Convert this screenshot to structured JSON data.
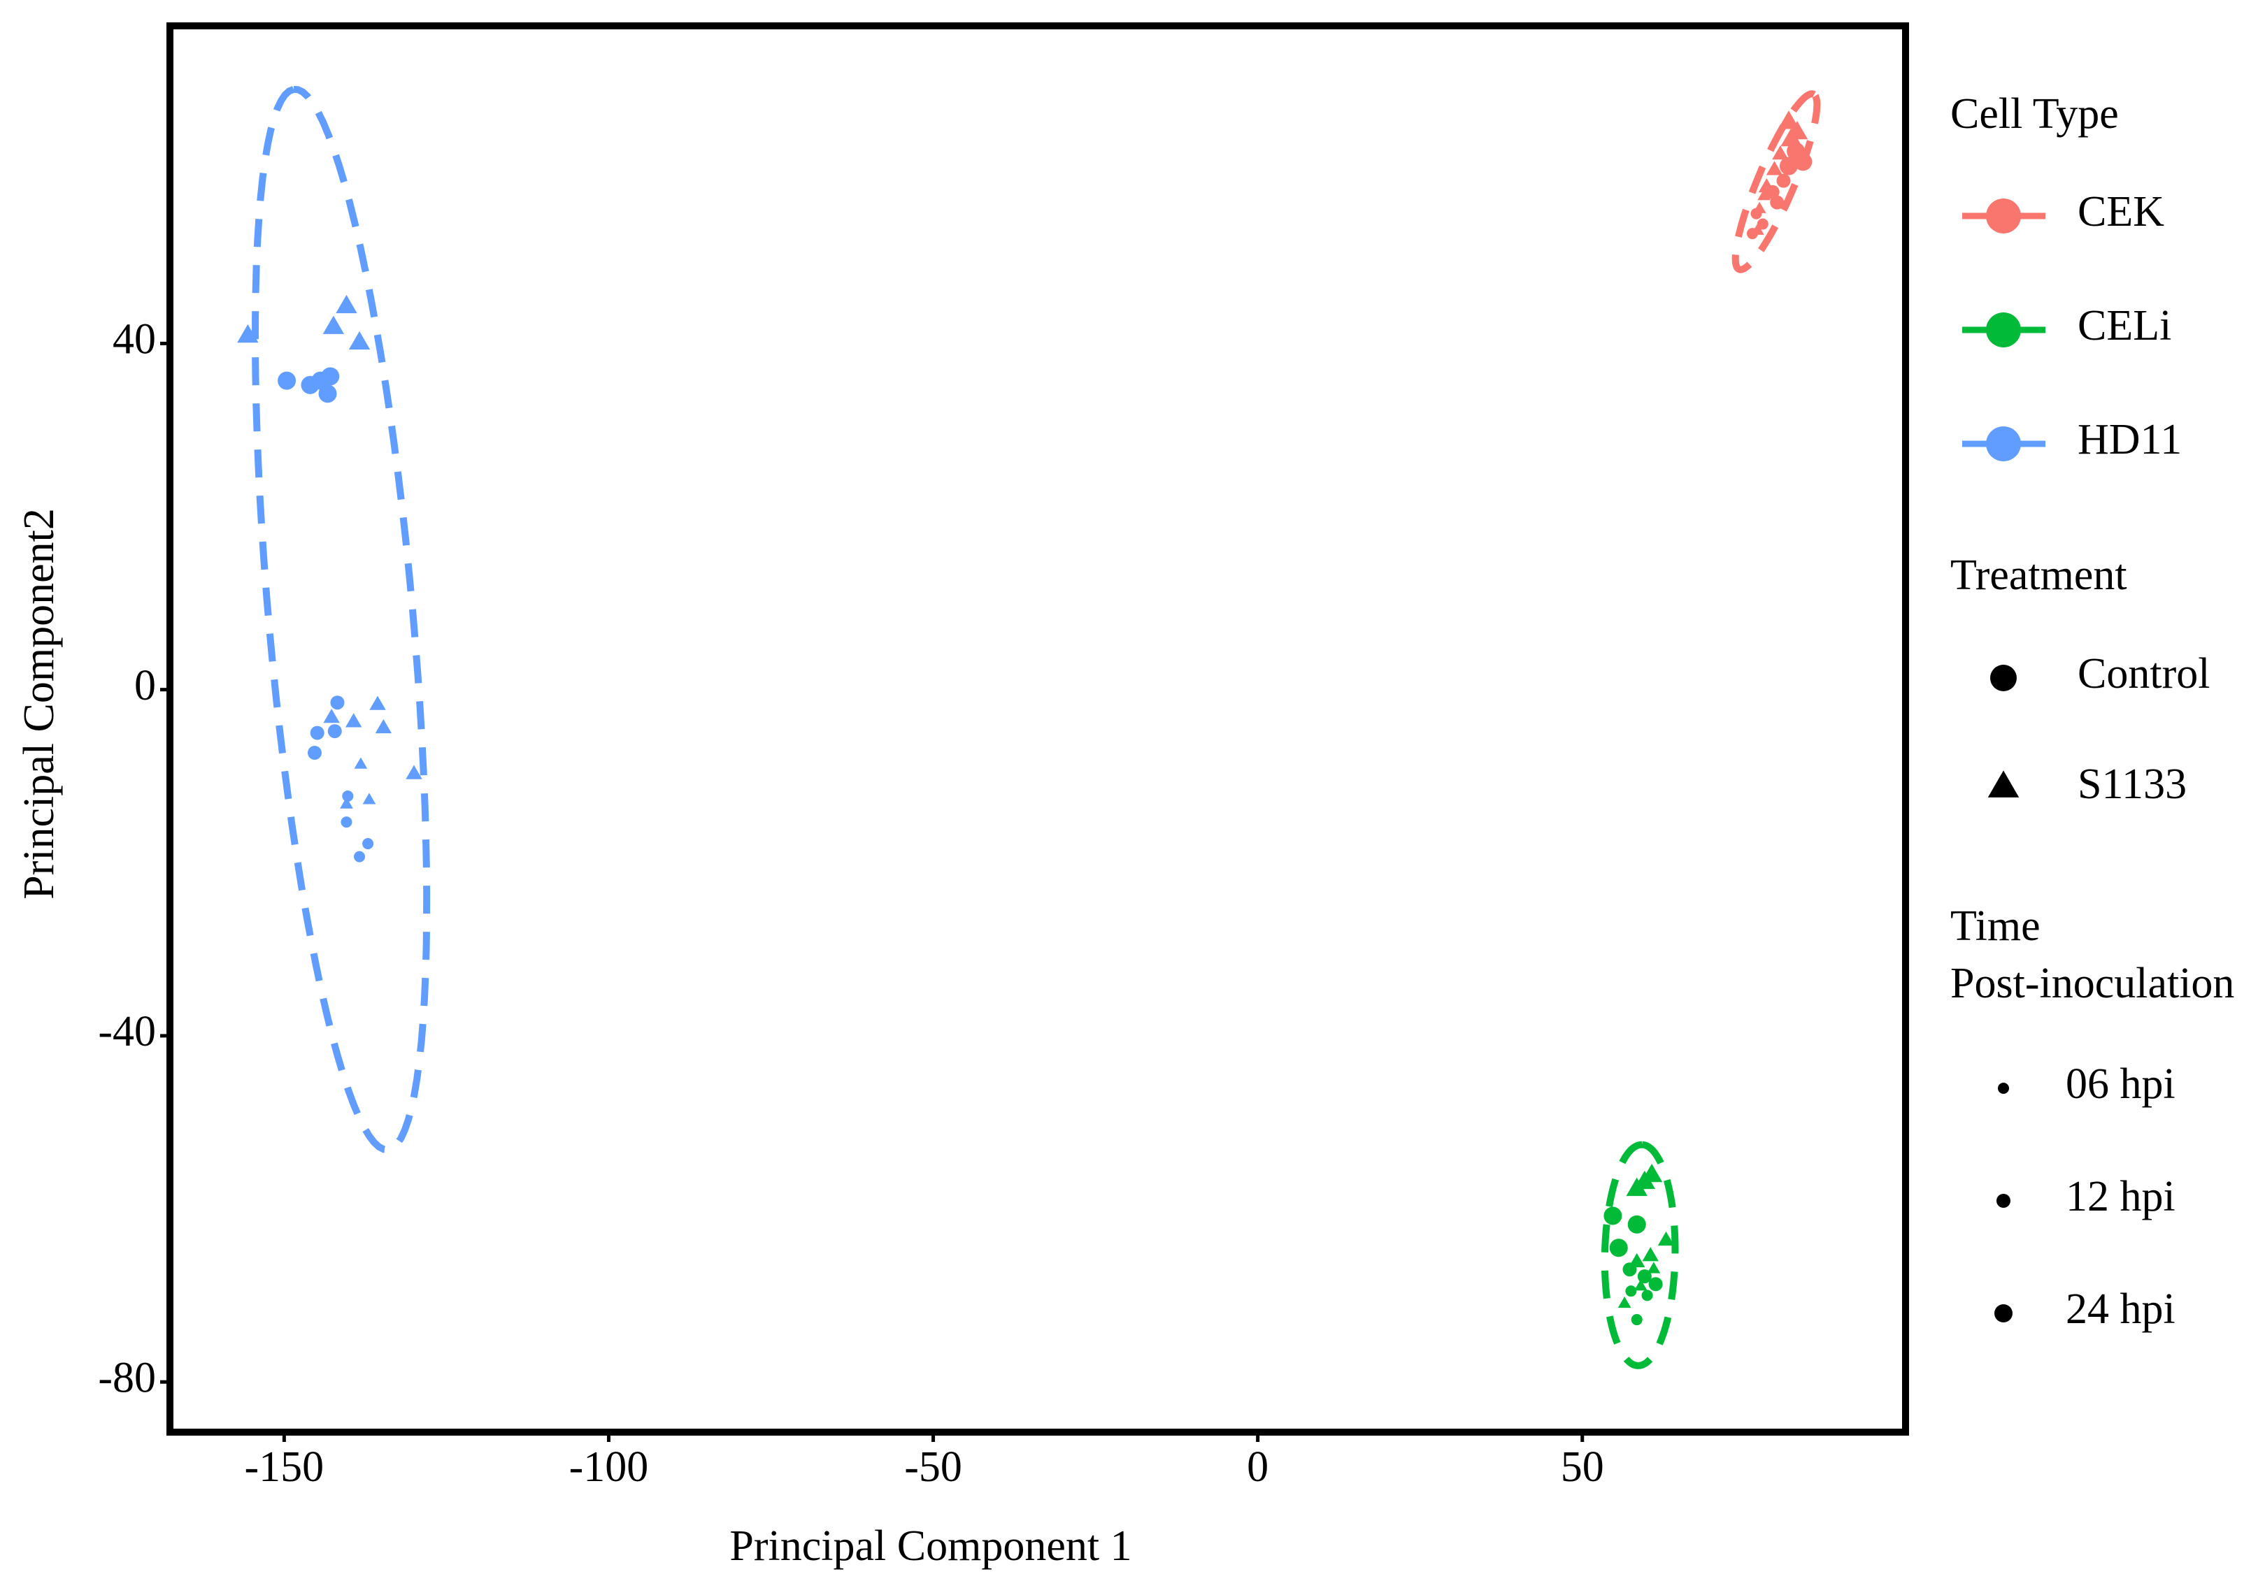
{
  "chart_data": {
    "type": "scatter",
    "x_label": "Principal Component 1",
    "y_label": "Principal Component2",
    "xlim": [
      -167.6,
      99.8
    ],
    "ylim": [
      -85.8,
      76.7
    ],
    "xticks": [
      -150,
      -100,
      -50,
      0,
      50
    ],
    "yticks": [
      -80,
      -40,
      0,
      40
    ],
    "legend_titles": {
      "color": "Cell Type",
      "shape": "Treatment",
      "size": [
        "Time",
        "Post-inoculation"
      ]
    },
    "treatments": [
      "Control",
      "S1133"
    ],
    "times": [
      "06 hpi",
      "12 hpi",
      "24 hpi"
    ],
    "legend_color": "#000000",
    "series": [
      {
        "name": "CEK",
        "color": "#f8766d",
        "groups": [
          {
            "treatment": "Control",
            "time": "24 hpi",
            "x": [
              82.9,
              84,
              81.8
            ],
            "y": [
              62.2,
              61,
              60.5
            ]
          },
          {
            "treatment": "S1133",
            "time": "24 hpi",
            "x": [
              81.8,
              83.1,
              82.2
            ],
            "y": [
              65.5,
              64.3,
              63.5
            ]
          },
          {
            "treatment": "Control",
            "time": "12 hpi",
            "x": [
              80,
              79.3,
              81
            ],
            "y": [
              56.3,
              57.5,
              58.8
            ]
          },
          {
            "treatment": "S1133",
            "time": "12 hpi",
            "x": [
              79.6,
              78.4,
              80.5
            ],
            "y": [
              60,
              58,
              61.8
            ]
          },
          {
            "treatment": "Control",
            "time": "06 hpi",
            "x": [
              76.2,
              77.8,
              76.8
            ],
            "y": [
              52.7,
              53.8,
              55
            ]
          },
          {
            "treatment": "S1133",
            "time": "06 hpi",
            "x": [
              77.3,
              78,
              77
            ],
            "y": [
              55.5,
              57,
              53
            ]
          }
        ]
      },
      {
        "name": "CELi",
        "color": "#00ba38",
        "groups": [
          {
            "treatment": "Control",
            "time": "24 hpi",
            "x": [
              54.7,
              58.4,
              55.6
            ],
            "y": [
              -60.8,
              -61.8,
              -64.5
            ]
          },
          {
            "treatment": "S1133",
            "time": "24 hpi",
            "x": [
              59.6,
              60.7,
              58.4
            ],
            "y": [
              -57,
              -56.2,
              -57.8
            ]
          },
          {
            "treatment": "Control",
            "time": "12 hpi",
            "x": [
              59.6,
              57.3,
              61.3
            ],
            "y": [
              -67.8,
              -67,
              -68.7
            ]
          },
          {
            "treatment": "S1133",
            "time": "12 hpi",
            "x": [
              62.9,
              60.5,
              58.4
            ],
            "y": [
              -63.7,
              -65.5,
              -66.2
            ]
          },
          {
            "treatment": "Control",
            "time": "06 hpi",
            "x": [
              58.4,
              60,
              57.5
            ],
            "y": [
              -72.8,
              -70,
              -69.5
            ]
          },
          {
            "treatment": "S1133",
            "time": "06 hpi",
            "x": [
              59,
              61,
              56.5
            ],
            "y": [
              -69,
              -67,
              -71
            ]
          }
        ]
      },
      {
        "name": "HD11",
        "color": "#619cff",
        "groups": [
          {
            "treatment": "Control",
            "time": "24 hpi",
            "x": [
              -149.6,
              -146,
              -144.4,
              -142.9,
              -143.3
            ],
            "y": [
              35.7,
              35.2,
              35.7,
              36.2,
              34.2
            ]
          },
          {
            "treatment": "S1133",
            "time": "24 hpi",
            "x": [
              -155.6,
              -142.4,
              -140.4,
              -138.4
            ],
            "y": [
              40.8,
              41.8,
              44.2,
              40
            ]
          },
          {
            "treatment": "Control",
            "time": "12 hpi",
            "x": [
              -144.9,
              -145.3,
              -142.2,
              -141.8
            ],
            "y": [
              -5,
              -7.3,
              -4.8,
              -1.5
            ]
          },
          {
            "treatment": "S1133",
            "time": "12 hpi",
            "x": [
              -142.7,
              -139.3,
              -135.6,
              -134.7,
              -130
            ],
            "y": [
              -3.3,
              -3.8,
              -1.8,
              -4.5,
              -9.8
            ]
          },
          {
            "treatment": "Control",
            "time": "06 hpi",
            "x": [
              -140.4,
              -137.1,
              -138.4,
              -140.2
            ],
            "y": [
              -15.3,
              -17.8,
              -19.3,
              -12.3
            ]
          },
          {
            "treatment": "S1133",
            "time": "06 hpi",
            "x": [
              -138.2,
              -136.9,
              -140.4
            ],
            "y": [
              -8.7,
              -12.8,
              -13.3
            ]
          }
        ]
      }
    ]
  }
}
